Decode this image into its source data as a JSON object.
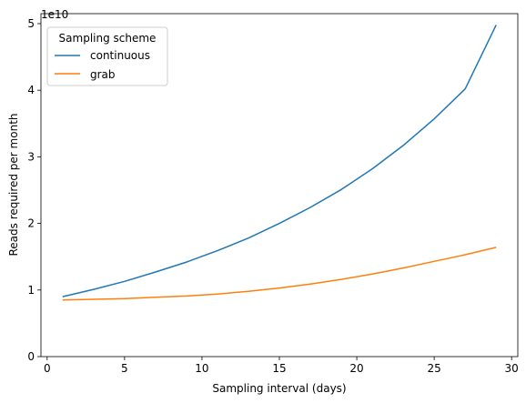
{
  "chart_data": {
    "type": "line",
    "xlabel": "Sampling interval (days)",
    "ylabel": "Reads required per month",
    "y_multiplier_label": "1e10",
    "xlim": [
      -0.4,
      30.4
    ],
    "ylim": [
      0,
      5.15
    ],
    "x_ticks": [
      0,
      5,
      10,
      15,
      20,
      25,
      30
    ],
    "y_ticks": [
      0,
      1,
      2,
      3,
      4,
      5
    ],
    "grid": false,
    "legend": {
      "title": "Sampling scheme",
      "placement": "top-left"
    },
    "series": [
      {
        "name": "continuous",
        "color": "#1f77b4",
        "x": [
          1,
          3,
          5,
          7,
          9,
          11,
          13,
          15,
          17,
          19,
          21,
          23,
          25,
          27,
          29
        ],
        "y": [
          0.9,
          1.01,
          1.13,
          1.27,
          1.42,
          1.59,
          1.78,
          2.0,
          2.24,
          2.51,
          2.82,
          3.17,
          3.57,
          4.02,
          4.98
        ]
      },
      {
        "name": "grab",
        "color": "#ff7f0e",
        "x": [
          1,
          3,
          5,
          7,
          9,
          11,
          13,
          15,
          17,
          19,
          21,
          23,
          25,
          27,
          29
        ],
        "y": [
          0.85,
          0.86,
          0.87,
          0.89,
          0.91,
          0.94,
          0.98,
          1.03,
          1.09,
          1.16,
          1.24,
          1.33,
          1.43,
          1.53,
          1.64
        ]
      }
    ]
  }
}
